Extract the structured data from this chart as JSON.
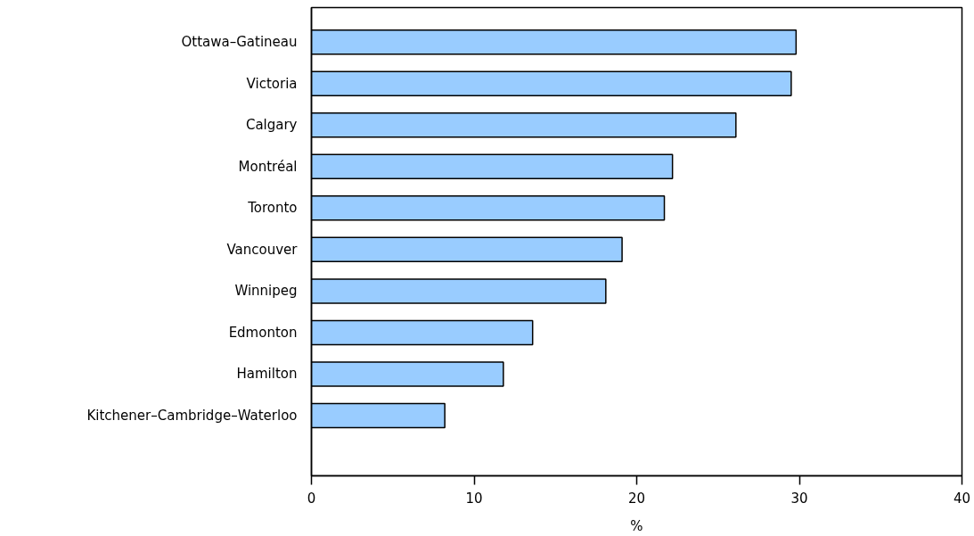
{
  "chart_data": {
    "type": "bar",
    "orientation": "horizontal",
    "xlabel": "%",
    "categories": [
      "Ottawa–Gatineau",
      "Victoria",
      "Calgary",
      "Montréal",
      "Toronto",
      "Vancouver",
      "Winnipeg",
      "Edmonton",
      "Hamilton",
      "Kitchener–Cambridge–Waterloo"
    ],
    "values": [
      29.8,
      29.5,
      26.1,
      22.2,
      21.7,
      19.1,
      18.1,
      13.6,
      11.8,
      8.2
    ],
    "color": "#99ccff",
    "xlim": [
      0,
      40
    ],
    "xticks": [
      0,
      10,
      20,
      30,
      40
    ],
    "grid": false
  }
}
